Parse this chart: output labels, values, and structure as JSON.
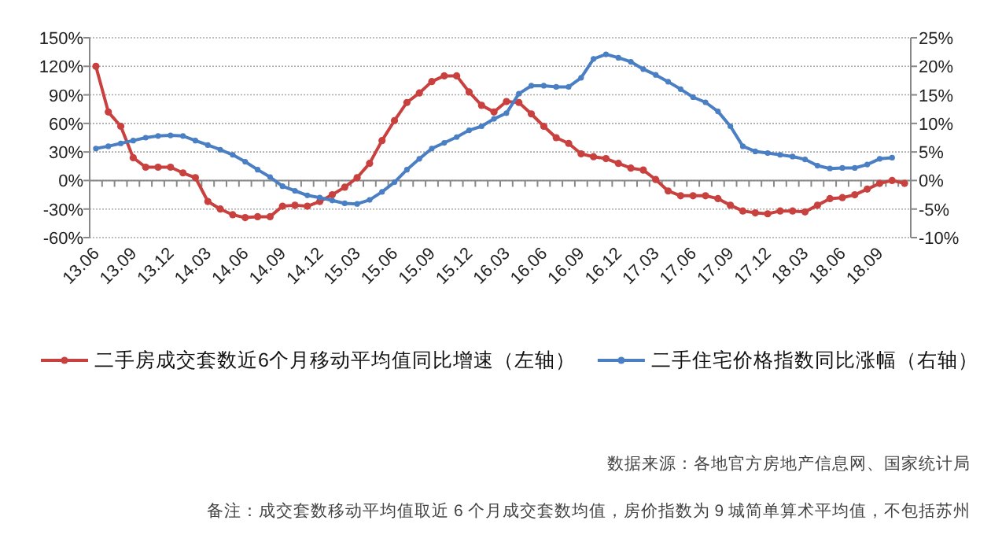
{
  "chart_data": {
    "type": "line",
    "categories": [
      "13.06",
      null,
      null,
      "13.09",
      null,
      null,
      "13.12",
      null,
      null,
      "14.03",
      null,
      null,
      "14.06",
      null,
      null,
      "14.09",
      null,
      null,
      "14.12",
      null,
      null,
      "15.03",
      null,
      null,
      "15.06",
      null,
      null,
      "15.09",
      null,
      null,
      "15.12",
      null,
      null,
      "16.03",
      null,
      null,
      "16.06",
      null,
      null,
      "16.09",
      null,
      null,
      "16.12",
      null,
      null,
      "17.03",
      null,
      null,
      "17.06",
      null,
      null,
      "17.09",
      null,
      null,
      "17.12",
      null,
      null,
      "18.03",
      null,
      null,
      "18.06",
      null,
      null,
      "18.09",
      null,
      null
    ],
    "series": [
      {
        "name": "二手房成交套数近6个月移动平均值同比增速（左轴）",
        "color": "#c9413f",
        "values": [
          120,
          72,
          57,
          24,
          14,
          14,
          14,
          8,
          3,
          -22,
          -30,
          -36,
          -39,
          -38,
          -38,
          -27,
          -26,
          -27,
          -22,
          -15,
          -7,
          3,
          18,
          42,
          63,
          82,
          92,
          104,
          110,
          110,
          93,
          79,
          72,
          83,
          82,
          70,
          57,
          45,
          39,
          28,
          25,
          23,
          18,
          13,
          11,
          1,
          -11,
          -16,
          -16,
          -16,
          -19,
          -26,
          -32,
          -34,
          -35,
          -32,
          -32,
          -33,
          -26,
          -19,
          -18,
          -15,
          -9,
          -3,
          0,
          -3
        ]
      },
      {
        "name": "二手住宅价格指数同比涨幅（右轴）",
        "color": "#4a7fc4",
        "axis": "y2",
        "values": [
          5.6,
          6.0,
          6.5,
          7.0,
          7.5,
          7.8,
          7.9,
          7.8,
          7.0,
          6.2,
          5.4,
          4.5,
          3.3,
          1.9,
          0.6,
          -1.0,
          -1.8,
          -2.6,
          -3.0,
          -3.5,
          -4.0,
          -4.1,
          -3.4,
          -2.0,
          -0.3,
          1.9,
          3.8,
          5.6,
          6.6,
          7.6,
          8.8,
          9.5,
          10.8,
          11.8,
          15.2,
          16.6,
          16.6,
          16.4,
          16.4,
          18.0,
          21.3,
          22.1,
          21.5,
          20.8,
          19.5,
          18.5,
          17.3,
          16.0,
          14.6,
          13.7,
          12.1,
          9.5,
          6.0,
          5.1,
          4.8,
          4.5,
          4.2,
          3.7,
          2.6,
          2.1,
          2.2,
          2.2,
          2.8,
          3.8,
          4.0,
          null
        ]
      }
    ],
    "ylim": [
      -60,
      150
    ],
    "yticks": [
      {
        "value": -60,
        "label": "-60%"
      },
      {
        "value": -30,
        "label": "-30%"
      },
      {
        "value": 0,
        "label": "0%"
      },
      {
        "value": 30,
        "label": "30%"
      },
      {
        "value": 60,
        "label": "60%"
      },
      {
        "value": 90,
        "label": "90%"
      },
      {
        "value": 120,
        "label": "120%"
      },
      {
        "value": 150,
        "label": "150%"
      }
    ],
    "y2lim": [
      -10,
      25
    ],
    "y2ticks": [
      {
        "value": -10,
        "label": "-10%"
      },
      {
        "value": -5,
        "label": "-5%"
      },
      {
        "value": 0,
        "label": "0%"
      },
      {
        "value": 5,
        "label": "5%"
      },
      {
        "value": 10,
        "label": "10%"
      },
      {
        "value": 15,
        "label": "15%"
      },
      {
        "value": 20,
        "label": "20%"
      },
      {
        "value": 25,
        "label": "25%"
      }
    ],
    "grid": "y",
    "legend": "bottom",
    "marker": "circle",
    "line_style": "solid",
    "annotations": [
      "数据来源：各地官方房地产信息网、国家统计局",
      "备注：成交套数移动平均值取近 6 个月成交套数均值，房价指数为 9 城简单算术平均值，不包括苏州"
    ]
  }
}
